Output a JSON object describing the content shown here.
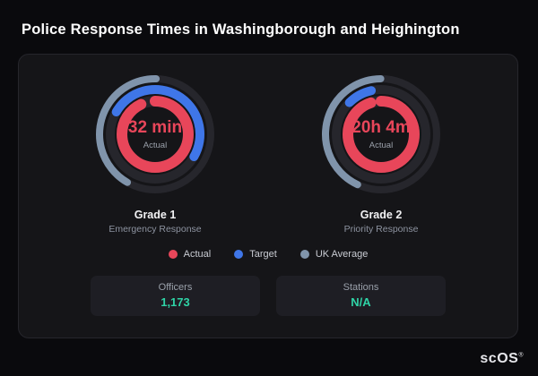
{
  "title": "Police Response Times in Washingborough and Heighington",
  "chart_data": {
    "type": "donut",
    "title": "Police Response Times in Washingborough and Heighington",
    "gauges": [
      {
        "label": "Grade 1",
        "sublabel": "Emergency Response",
        "value": "32 min",
        "value_label": "Actual",
        "rings": [
          {
            "name": "UK Average",
            "color": "#8094ab",
            "fraction": 0.42,
            "start_deg": 210
          },
          {
            "name": "Target",
            "color": "#3f76e8",
            "fraction": 0.5,
            "start_deg": 300
          },
          {
            "name": "Actual",
            "color": "#e8465a",
            "fraction": 0.93,
            "start_deg": 0
          }
        ]
      },
      {
        "label": "Grade 2",
        "sublabel": "Priority Response",
        "value": "20h 4m",
        "value_label": "Actual",
        "rings": [
          {
            "name": "UK Average",
            "color": "#8094ab",
            "fraction": 0.43,
            "start_deg": 205
          },
          {
            "name": "Target",
            "color": "#3f76e8",
            "fraction": 0.09,
            "start_deg": 315
          },
          {
            "name": "Actual",
            "color": "#e8465a",
            "fraction": 0.95,
            "start_deg": 0
          }
        ]
      }
    ],
    "legend": [
      {
        "label": "Actual",
        "color": "#e8465a"
      },
      {
        "label": "Target",
        "color": "#3f76e8"
      },
      {
        "label": "UK Average",
        "color": "#8094ab"
      }
    ]
  },
  "stats": [
    {
      "label": "Officers",
      "value": "1,173"
    },
    {
      "label": "Stations",
      "value": "N/A"
    }
  ],
  "colors": {
    "actual_value": "#e8465a",
    "stat_value": "#2fd3a6",
    "ring_track": "#26262c"
  },
  "brand": {
    "name": "scOS",
    "mark": "®"
  }
}
